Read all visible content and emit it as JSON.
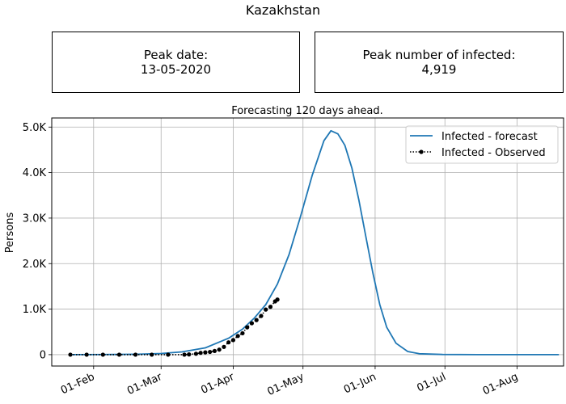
{
  "header": {
    "title": "Kazakhstan",
    "peak_date_label": "Peak date:",
    "peak_date_value": "13-05-2020",
    "peak_number_label": "Peak number of infected:",
    "peak_number_value": "4,919"
  },
  "chart_data": {
    "type": "line",
    "title": "Forecasting 120 days ahead.",
    "xlabel": "",
    "ylabel": "Persons",
    "x_tick_labels": [
      "01-Feb",
      "01-Mar",
      "01-Apr",
      "01-May",
      "01-Jun",
      "01-Jul",
      "01-Aug"
    ],
    "y_tick_labels": [
      "0",
      "1.0K",
      "2.0K",
      "3.0K",
      "4.0K",
      "5.0K"
    ],
    "y_ticks": [
      0,
      1000,
      2000,
      3000,
      4000,
      5000
    ],
    "ylim": [
      -250,
      5200
    ],
    "xlim": [
      "2020-01-14",
      "2020-08-21"
    ],
    "grid": true,
    "legend_position": "top-right",
    "series": [
      {
        "name": "Infected - forecast",
        "color": "#1f77b4",
        "style": "solid line",
        "points": [
          [
            "2020-01-22",
            0
          ],
          [
            "2020-02-10",
            3
          ],
          [
            "2020-02-20",
            10
          ],
          [
            "2020-03-01",
            25
          ],
          [
            "2020-03-10",
            60
          ],
          [
            "2020-03-20",
            150
          ],
          [
            "2020-03-30",
            360
          ],
          [
            "2020-04-05",
            560
          ],
          [
            "2020-04-10",
            800
          ],
          [
            "2020-04-15",
            1100
          ],
          [
            "2020-04-20",
            1550
          ],
          [
            "2020-04-25",
            2200
          ],
          [
            "2020-04-30",
            3050
          ],
          [
            "2020-05-05",
            3950
          ],
          [
            "2020-05-10",
            4700
          ],
          [
            "2020-05-13",
            4919
          ],
          [
            "2020-05-16",
            4850
          ],
          [
            "2020-05-19",
            4600
          ],
          [
            "2020-05-22",
            4100
          ],
          [
            "2020-05-25",
            3400
          ],
          [
            "2020-05-28",
            2600
          ],
          [
            "2020-05-31",
            1800
          ],
          [
            "2020-06-03",
            1100
          ],
          [
            "2020-06-06",
            600
          ],
          [
            "2020-06-10",
            250
          ],
          [
            "2020-06-15",
            70
          ],
          [
            "2020-06-20",
            20
          ],
          [
            "2020-06-30",
            3
          ],
          [
            "2020-07-15",
            0
          ],
          [
            "2020-08-19",
            0
          ]
        ]
      },
      {
        "name": "Infected - Observed",
        "color": "#000000",
        "style": "dotted line with markers",
        "points": [
          [
            "2020-01-22",
            0
          ],
          [
            "2020-01-29",
            0
          ],
          [
            "2020-02-05",
            0
          ],
          [
            "2020-02-12",
            0
          ],
          [
            "2020-02-19",
            0
          ],
          [
            "2020-02-26",
            0
          ],
          [
            "2020-03-04",
            0
          ],
          [
            "2020-03-11",
            0
          ],
          [
            "2020-03-13",
            5
          ],
          [
            "2020-03-16",
            20
          ],
          [
            "2020-03-18",
            40
          ],
          [
            "2020-03-20",
            50
          ],
          [
            "2020-03-22",
            60
          ],
          [
            "2020-03-24",
            80
          ],
          [
            "2020-03-26",
            110
          ],
          [
            "2020-03-28",
            170
          ],
          [
            "2020-03-30",
            270
          ],
          [
            "2020-04-01",
            320
          ],
          [
            "2020-04-03",
            410
          ],
          [
            "2020-04-05",
            470
          ],
          [
            "2020-04-07",
            600
          ],
          [
            "2020-04-09",
            690
          ],
          [
            "2020-04-11",
            760
          ],
          [
            "2020-04-13",
            850
          ],
          [
            "2020-04-15",
            990
          ],
          [
            "2020-04-17",
            1050
          ],
          [
            "2020-04-19",
            1170
          ],
          [
            "2020-04-20",
            1210
          ]
        ]
      }
    ]
  }
}
